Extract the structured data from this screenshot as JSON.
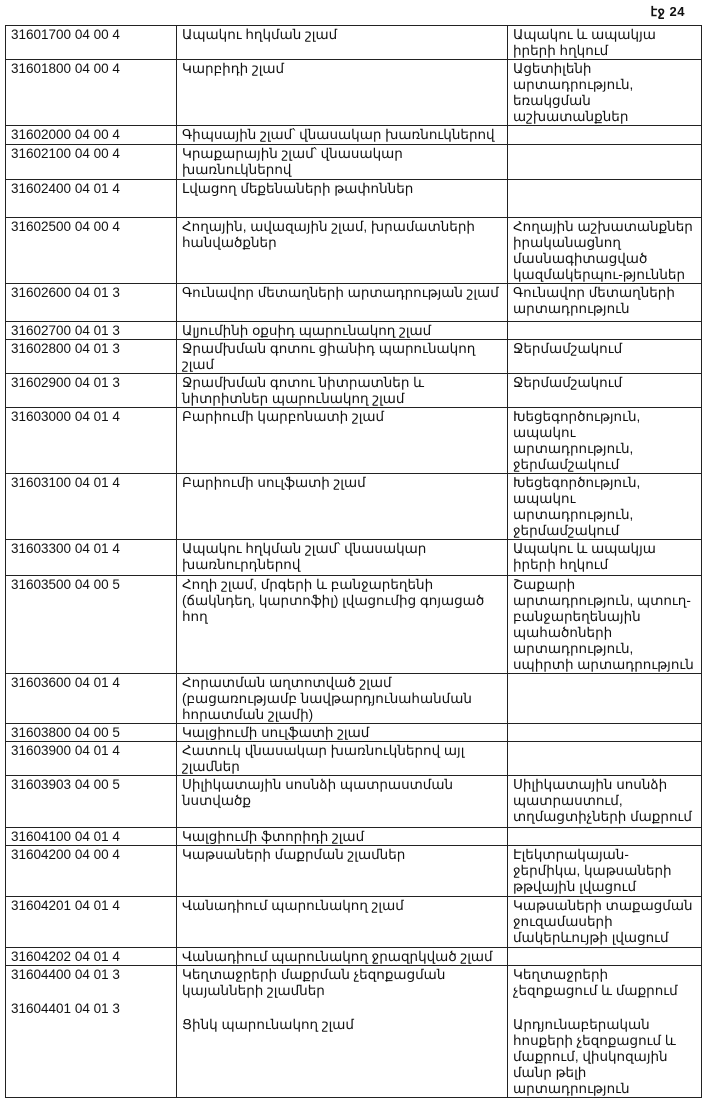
{
  "page_label": "էջ 24",
  "rows": [
    {
      "code": "31601700 04 00 4",
      "desc": "Ապակու հղկման շլամ",
      "src": "Ապակու և ապակյա իրերի հղկում"
    },
    {
      "code": "31601800 04 00 4",
      "desc": "Կարբիդի շլամ",
      "src": "Ացետիլենի արտադրություն, եռակցման աշխատանքներ"
    },
    {
      "code": "31602000 04 00 4",
      "desc": "Գիպսային շլամ՝ վնասակար խառնուկներով",
      "src": ""
    },
    {
      "code": "31602100 04 00 4",
      "desc": "Կրաքարային շլամ՝ վնասակար խառնուկներով",
      "src": ""
    },
    {
      "code": "31602400 04 01 4",
      "desc": "Լվացող մեքենաների թափոններ",
      "src": ""
    },
    {
      "code": "31602500 04 00 4",
      "desc": "Հողային, ավազային շլամ, խրամատների հանվածքներ",
      "src": "Հողային աշխատանքներ իրականացնող մասնագիտացված կազմակերպու-թյուններ"
    },
    {
      "code": "31602600 04 01 3",
      "desc": "Գունավոր մետաղների արտադրության շլամ",
      "src": "Գունավոր մետաղների արտադրություն"
    },
    {
      "code": "31602700 04 01 3",
      "desc": "Ալյումինի օքսիդ պարունակող շլամ",
      "src": ""
    },
    {
      "code": "31602800 04 01 3",
      "desc": "Ջրամխման գոտու ցիանիդ պարունակող շլամ",
      "src": "Ջերմամշակում"
    },
    {
      "code": "31602900 04 01 3",
      "desc": "Ջրամխման գոտու նիտրատներ և նիտրիտներ պարունակող շլամ",
      "src": "Ջերմամշակում"
    },
    {
      "code": "31603000 04 01 4",
      "desc": "Բարիումի կարբոնատի շլամ",
      "src": "Խեցեգործություն, ապակու արտադրություն, ջերմամշակում"
    },
    {
      "code": "31603100 04 01 4",
      "desc": "Բարիումի սուլֆատի շլամ",
      "src": "Խեցեգործություն, ապակու արտադրություն, ջերմամշակում"
    },
    {
      "code": "31603300 04 01 4",
      "desc": "Ապակու հղկման շլամ՝ վնասակար խառնուրդներով",
      "src": "Ապակու և ապակյա իրերի հղկում"
    },
    {
      "code": "31603500 04 00 5",
      "desc": "Հողի շլամ, մրգերի և բանջարեղենի (ճակնդեղ, կարտոֆիլ) լվացումից գոյացած հող",
      "src": "Շաքարի արտադրություն, պտուղ-բանջարեղենային պահածոների արտադրություն, սպիրտի արտադրություն"
    },
    {
      "code": "31603600 04 01 4",
      "desc": "Հորատման աղտոտված շլամ (բացառությամբ նավթարդյունահանման հորատման շլամի)",
      "src": ""
    },
    {
      "code": "31603800 04 00 5",
      "desc": "Կալցիումի սուլֆատի շլամ",
      "src": ""
    },
    {
      "code": "31603900 04 01 4",
      "desc": "Հատուկ վնասակար խառնուկներով այլ շլամներ",
      "src": ""
    },
    {
      "code": "31603903 04 00 5",
      "desc": "Սիլիկատային սոսնձի պատրաստման նստվածք",
      "src": "Սիլիկատային սոսնձի պատրաստում, տղմացտիչների մաքրում"
    },
    {
      "code": "31604100 04 01 4",
      "desc": "Կալցիումի ֆտորիդի շլամ",
      "src": ""
    },
    {
      "code": "31604200 04 00 4",
      "desc": "Կաթսաների մաքրման շլամներ",
      "src": "Էլեկտրակայան-ջերմիկա, կաթսաների թթվային լվացում"
    },
    {
      "code": "31604201 04 01 4",
      "desc": "Վանադիում պարունակող շլամ",
      "src": "Կաթսաների տաքացման ջուզամասերի մակերևույթի լվացում"
    },
    {
      "code": "31604202 04 01 4",
      "desc": "Վանադիում պարունակող ջրազրկված շլամ",
      "src": ""
    },
    {
      "code": "31604400 04 01 3",
      "desc": "Կեղտաջրերի մաքրման չեզոքացման կայանների շլամներ",
      "src": "Կեղտաջրերի չեզոքացում և մաքրում",
      "code2": "31604401 04 01 3",
      "desc2": "Ցինկ պարունակող շլամ",
      "src2": "Արդյունաբերական հոսքերի չեզոքացում և մաքրում, վիսկոզային մանր թելի արտադրություն"
    }
  ]
}
